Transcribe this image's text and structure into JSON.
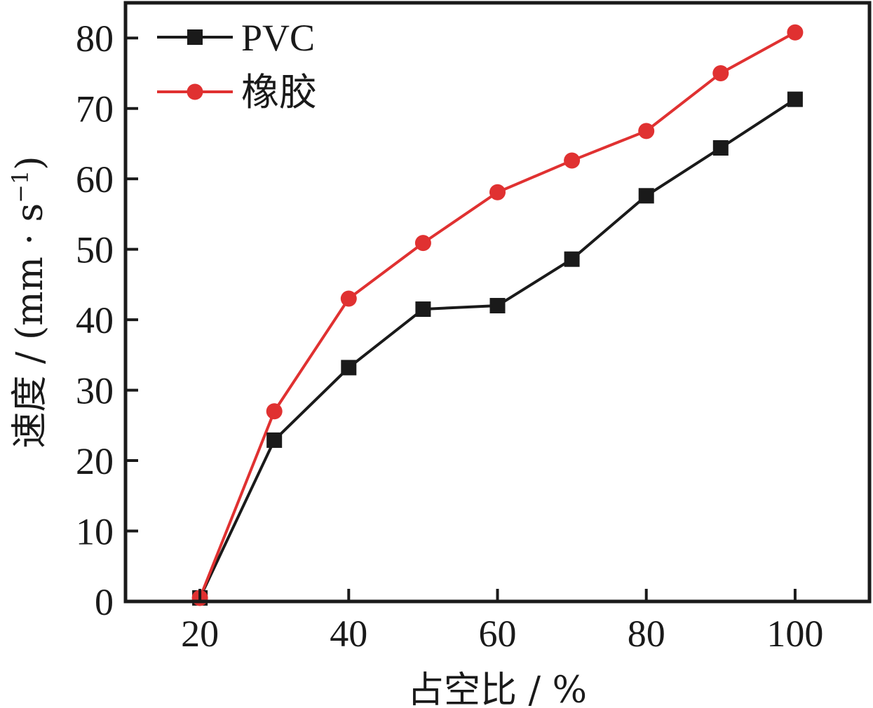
{
  "chart_data": {
    "type": "line",
    "title": "",
    "xlabel": "占空比 / %",
    "ylabel": "速度 / (mm · s",
    "ylabel_superscript": "−1",
    "ylabel_close": ")",
    "xlim": [
      10,
      110
    ],
    "ylim": [
      0,
      85
    ],
    "xticks": [
      20,
      40,
      60,
      80,
      100
    ],
    "xtick_labels": [
      "20",
      "40",
      "60",
      "80",
      "100"
    ],
    "yticks": [
      0,
      10,
      20,
      30,
      40,
      50,
      60,
      70,
      80
    ],
    "ytick_labels": [
      "0",
      "10",
      "20",
      "30",
      "40",
      "50",
      "60",
      "70",
      "80"
    ],
    "grid": false,
    "legend_position": "top-left",
    "x": [
      20,
      30,
      40,
      50,
      60,
      70,
      80,
      90,
      100
    ],
    "series": [
      {
        "name": "PVC",
        "color": "#1a1a1a",
        "marker": "square",
        "values": [
          0.5,
          22.9,
          33.2,
          41.5,
          42.0,
          48.6,
          57.6,
          64.4,
          71.3
        ]
      },
      {
        "name": "橡胶",
        "color": "#e03131",
        "marker": "circle",
        "values": [
          0.5,
          27.0,
          43.0,
          50.9,
          58.1,
          62.6,
          66.8,
          75.0,
          80.8
        ]
      }
    ]
  }
}
